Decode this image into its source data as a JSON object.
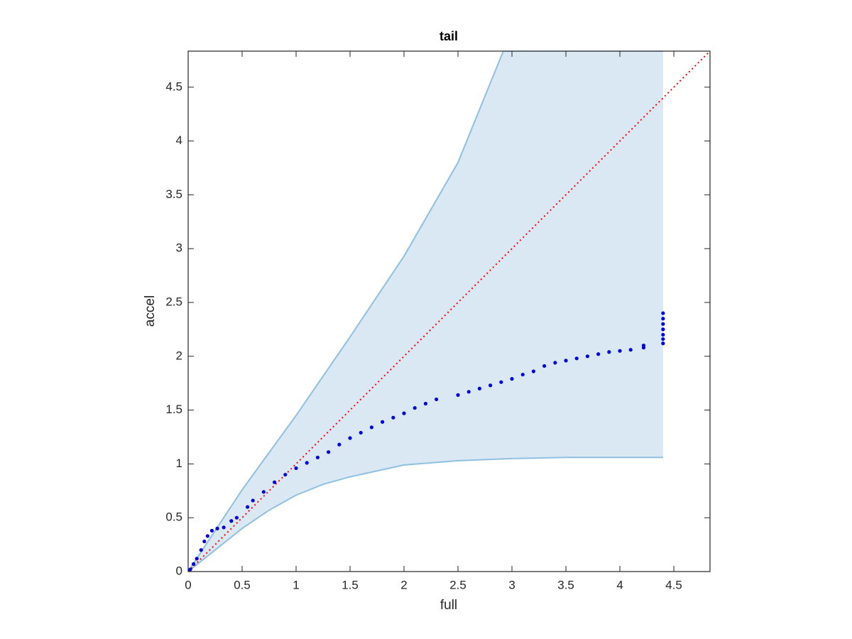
{
  "chart_data": {
    "type": "scatter",
    "title": "tail",
    "x_label": "full",
    "y_label": "accel",
    "xlim": [
      0,
      4.835
    ],
    "ylim": [
      0,
      4.835
    ],
    "xticks": [
      0,
      0.5,
      1,
      1.5,
      2,
      2.5,
      3,
      3.5,
      4,
      4.5
    ],
    "yticks": [
      0,
      0.5,
      1,
      1.5,
      2,
      2.5,
      3,
      3.5,
      4,
      4.5
    ],
    "band": {
      "fill_color": "#dae8f3",
      "edge_color": "#8fc0e1",
      "upper": {
        "x": [
          0,
          0.25,
          0.5,
          1,
          1.5,
          2,
          2.5,
          2.92,
          4.4
        ],
        "y": [
          0,
          0.38,
          0.76,
          1.45,
          2.18,
          2.93,
          3.8,
          4.835,
          4.835
        ]
      },
      "lower": {
        "x": [
          0,
          0.25,
          0.5,
          0.75,
          1,
          1.25,
          1.5,
          2,
          2.5,
          3,
          3.5,
          4,
          4.4
        ],
        "y": [
          0,
          0.2,
          0.4,
          0.57,
          0.71,
          0.81,
          0.88,
          0.99,
          1.03,
          1.05,
          1.06,
          1.06,
          1.06
        ]
      }
    },
    "points": {
      "color": "#0000e0",
      "x": [
        0,
        0.02,
        0.05,
        0.08,
        0.12,
        0.15,
        0.18,
        0.22,
        0.27,
        0.33,
        0.4,
        0.45,
        0.55,
        0.6,
        0.7,
        0.8,
        0.9,
        1.0,
        1.1,
        1.2,
        1.3,
        1.4,
        1.5,
        1.6,
        1.7,
        1.8,
        1.9,
        2.0,
        2.1,
        2.2,
        2.3,
        2.5,
        2.6,
        2.7,
        2.8,
        2.9,
        3.0,
        3.1,
        3.2,
        3.3,
        3.4,
        3.5,
        3.6,
        3.7,
        3.8,
        3.9,
        4.0,
        4.1,
        4.22,
        4.22,
        4.4,
        4.4,
        4.4,
        4.4,
        4.4,
        4.4,
        4.4
      ],
      "y": [
        0,
        0.02,
        0.07,
        0.12,
        0.2,
        0.28,
        0.33,
        0.38,
        0.4,
        0.41,
        0.47,
        0.5,
        0.6,
        0.66,
        0.74,
        0.83,
        0.9,
        0.96,
        1.01,
        1.06,
        1.11,
        1.18,
        1.24,
        1.29,
        1.34,
        1.39,
        1.43,
        1.47,
        1.52,
        1.56,
        1.6,
        1.64,
        1.67,
        1.7,
        1.73,
        1.76,
        1.79,
        1.83,
        1.86,
        1.91,
        1.94,
        1.96,
        1.98,
        2.0,
        2.02,
        2.04,
        2.05,
        2.06,
        2.08,
        2.1,
        2.12,
        2.16,
        2.2,
        2.25,
        2.3,
        2.35,
        2.4
      ]
    },
    "reference_line": {
      "color": "#ff0000",
      "x": [
        0,
        4.835
      ],
      "y": [
        0,
        4.835
      ]
    }
  }
}
